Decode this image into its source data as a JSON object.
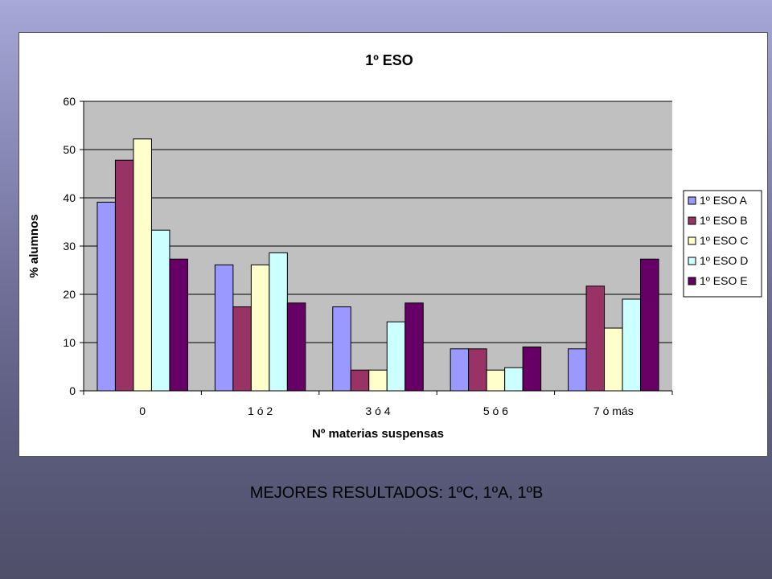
{
  "slide": {
    "caption": "MEJORES RESULTADOS: 1ºC, 1ºA, 1ºB"
  },
  "colors": {
    "plot_bg": "#c0c0c0",
    "grid": "#000000",
    "series": [
      "#9999ff",
      "#993366",
      "#ffffcc",
      "#ccffff",
      "#660066"
    ]
  },
  "chart_data": {
    "type": "bar",
    "title": "1º ESO",
    "xlabel": "Nº materias suspensas",
    "ylabel": "% alumnos",
    "ylim": [
      0,
      60
    ],
    "yticks": [
      0,
      10,
      20,
      30,
      40,
      50,
      60
    ],
    "grid": true,
    "legend_position": "right",
    "categories": [
      "0",
      "1 ó 2",
      "3 ó 4",
      "5 ó 6",
      "7 ó más"
    ],
    "series": [
      {
        "name": "1º ESO A",
        "values": [
          39.1,
          26.1,
          17.4,
          8.7,
          8.7
        ]
      },
      {
        "name": "1º ESO B",
        "values": [
          47.8,
          17.4,
          4.3,
          8.7,
          21.7
        ]
      },
      {
        "name": "1º ESO C",
        "values": [
          52.2,
          26.1,
          4.3,
          4.3,
          13.0
        ]
      },
      {
        "name": "1º ESO D",
        "values": [
          33.3,
          28.6,
          14.3,
          4.8,
          19.0
        ]
      },
      {
        "name": "1º ESO E",
        "values": [
          27.3,
          18.2,
          18.2,
          9.1,
          27.3
        ]
      }
    ]
  }
}
